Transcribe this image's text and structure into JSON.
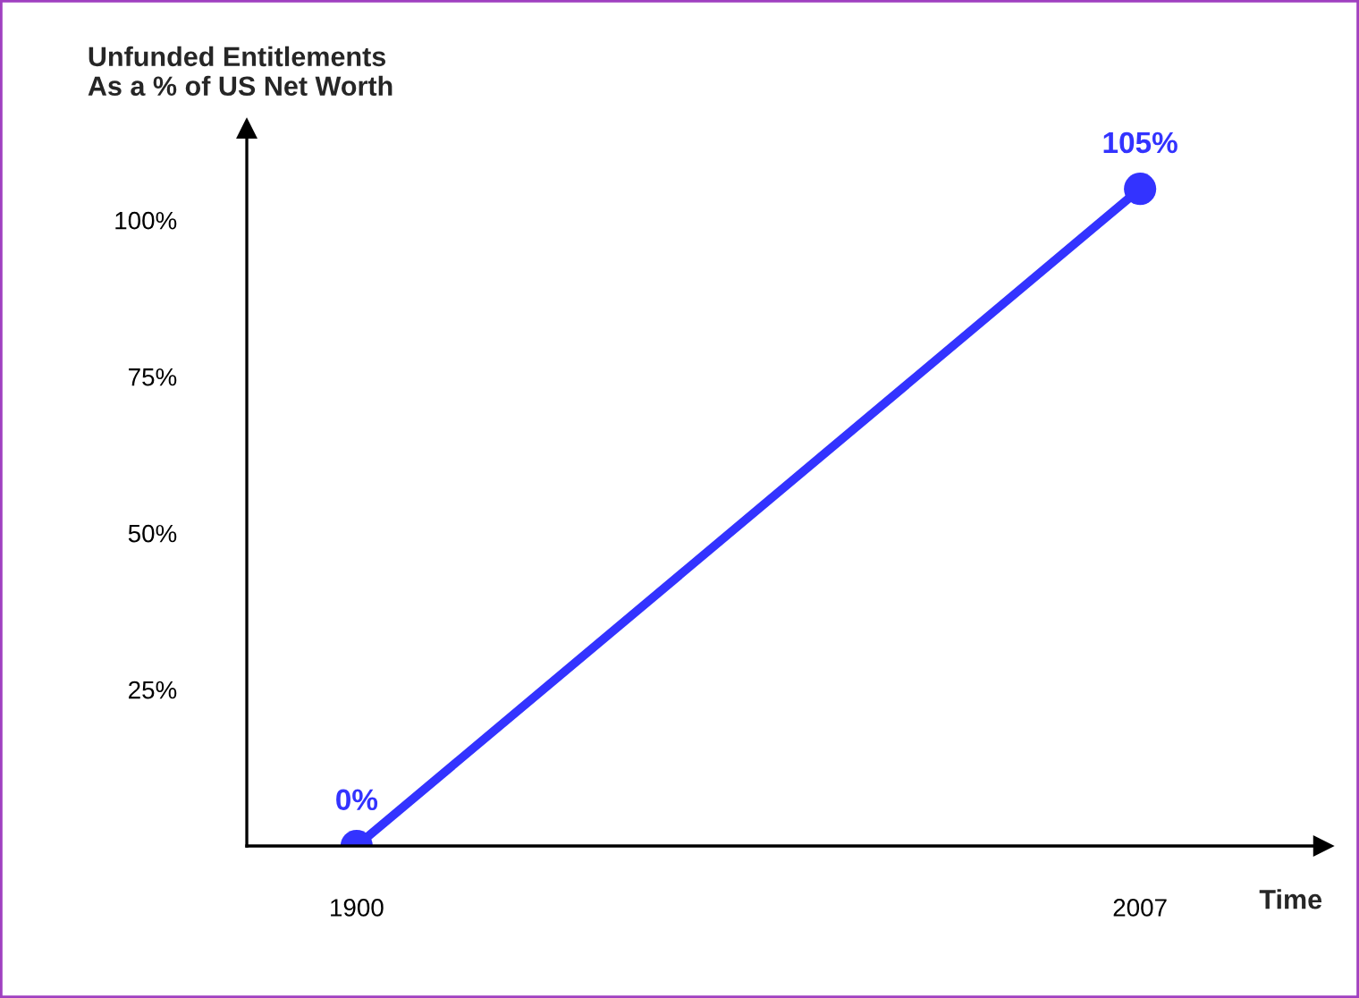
{
  "chart_data": {
    "type": "line",
    "xlabel": "Time",
    "ylabel": "Unfunded Entitlements\nAs a % of US Net Worth",
    "x": [
      1900,
      2007
    ],
    "series": [
      {
        "color": "#3333ff",
        "values": [
          0,
          105
        ],
        "value_labels": [
          "0%",
          "105%"
        ]
      }
    ],
    "xlim": [
      1885,
      2032
    ],
    "xticks": [
      1900,
      2007
    ],
    "ylim": [
      0,
      114.6
    ],
    "yticks": [
      {
        "value": 25,
        "label": "25%"
      },
      {
        "value": 50,
        "label": "50%"
      },
      {
        "value": 75,
        "label": "75%"
      },
      {
        "value": 100,
        "label": "100%"
      }
    ],
    "marker": "circle",
    "line_style": "solid",
    "grid": false,
    "legend": false
  }
}
